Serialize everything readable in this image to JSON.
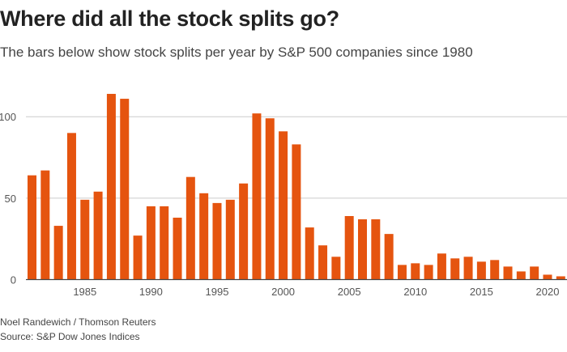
{
  "title": "Where did all the stock splits go?",
  "subtitle": "The bars below show stock splits per year by S&P 500 companies since 1980",
  "credit": "Noel Randewich / Thomson Reuters",
  "source": "Source: S&P Dow Jones Indices",
  "chart_data": {
    "type": "bar",
    "categories": [
      1981,
      1982,
      1983,
      1984,
      1985,
      1986,
      1987,
      1988,
      1989,
      1990,
      1991,
      1992,
      1993,
      1994,
      1995,
      1996,
      1997,
      1998,
      1999,
      2000,
      2001,
      2002,
      2003,
      2004,
      2005,
      2006,
      2007,
      2008,
      2009,
      2010,
      2011,
      2012,
      2013,
      2014,
      2015,
      2016,
      2017,
      2018,
      2019,
      2020,
      2021
    ],
    "values": [
      64,
      67,
      33,
      90,
      49,
      54,
      114,
      111,
      27,
      45,
      45,
      38,
      63,
      53,
      47,
      49,
      59,
      102,
      99,
      91,
      83,
      32,
      21,
      14,
      39,
      37,
      37,
      28,
      9,
      10,
      9,
      16,
      13,
      14,
      11,
      12,
      8,
      5,
      8,
      3,
      2
    ],
    "ylim": [
      0,
      115
    ],
    "yticks": [
      0,
      50,
      100
    ],
    "xticks": [
      1985,
      1990,
      1995,
      2000,
      2005,
      2010,
      2015,
      2020
    ],
    "grid": true,
    "bar_color": "#e5540f",
    "xlabel": "",
    "ylabel": ""
  }
}
